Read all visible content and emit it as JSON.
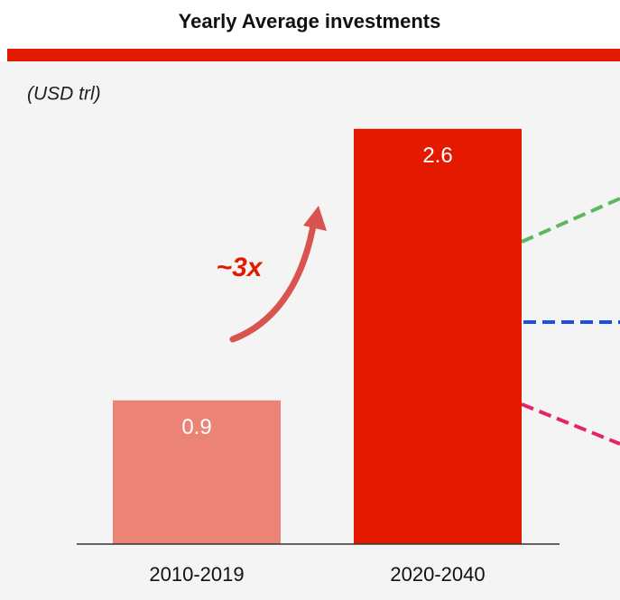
{
  "chart_data": {
    "type": "bar",
    "title": "Yearly Average investments",
    "subtitle": "(USD trl)",
    "categories": [
      "2010-2019",
      "2020-2040"
    ],
    "values": [
      0.9,
      2.6
    ],
    "colors": [
      "#eb8377",
      "#e41a00"
    ],
    "ylim": [
      0,
      3
    ],
    "annotation": "~3x"
  }
}
